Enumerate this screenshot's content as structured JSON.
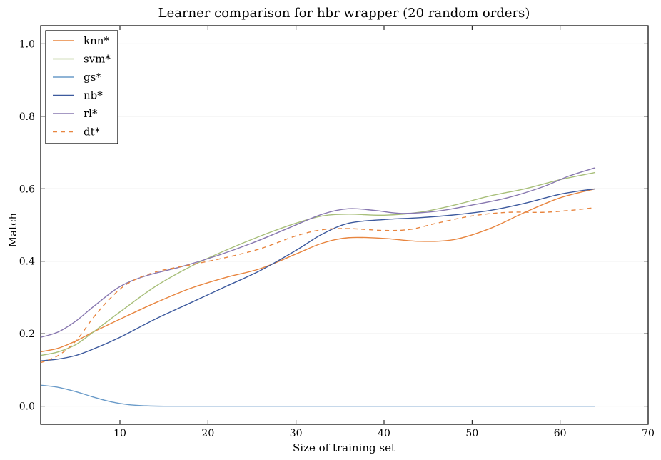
{
  "chart_data": {
    "type": "line",
    "title": "Learner comparison for hbr wrapper (20 random orders)",
    "xlabel": "Size of training set",
    "ylabel": "Match",
    "xlim": [
      1,
      70
    ],
    "ylim": [
      -0.05,
      1.05
    ],
    "xticks": [
      10,
      20,
      30,
      40,
      50,
      60,
      70
    ],
    "yticks": [
      0.0,
      0.2,
      0.4,
      0.6,
      0.8,
      1.0
    ],
    "grid": "horizontal",
    "legend_position": "top-left",
    "series": [
      {
        "name": "knn*",
        "color": "#E8853F",
        "dash": "solid",
        "x": [
          1,
          3,
          5,
          7,
          10,
          14,
          18,
          22,
          26,
          30,
          33,
          36,
          40,
          44,
          48,
          52,
          56,
          60,
          64
        ],
        "y": [
          0.15,
          0.16,
          0.18,
          0.205,
          0.24,
          0.285,
          0.325,
          0.355,
          0.38,
          0.42,
          0.45,
          0.465,
          0.463,
          0.455,
          0.46,
          0.49,
          0.535,
          0.575,
          0.6
        ]
      },
      {
        "name": "svm*",
        "color": "#A8BF7A",
        "dash": "solid",
        "x": [
          1,
          3,
          5,
          7,
          10,
          14,
          18,
          22,
          26,
          30,
          33,
          36,
          40,
          44,
          48,
          52,
          56,
          60,
          64
        ],
        "y": [
          0.14,
          0.15,
          0.17,
          0.205,
          0.26,
          0.33,
          0.385,
          0.43,
          0.47,
          0.505,
          0.525,
          0.53,
          0.527,
          0.535,
          0.555,
          0.58,
          0.6,
          0.625,
          0.645
        ]
      },
      {
        "name": "gs*",
        "color": "#6A9BC9",
        "dash": "solid",
        "x": [
          1,
          3,
          5,
          7,
          9,
          11,
          13,
          15,
          20,
          30,
          40,
          50,
          60,
          64
        ],
        "y": [
          0.058,
          0.052,
          0.04,
          0.025,
          0.012,
          0.004,
          0.001,
          0.0,
          0.0,
          0.0,
          0.0,
          0.0,
          0.0,
          0.0
        ]
      },
      {
        "name": "nb*",
        "color": "#3D5A9E",
        "dash": "solid",
        "x": [
          1,
          3,
          5,
          7,
          10,
          14,
          18,
          22,
          26,
          30,
          33,
          36,
          40,
          44,
          48,
          52,
          56,
          60,
          64
        ],
        "y": [
          0.125,
          0.13,
          0.14,
          0.158,
          0.19,
          0.24,
          0.285,
          0.33,
          0.375,
          0.43,
          0.475,
          0.505,
          0.515,
          0.52,
          0.528,
          0.54,
          0.56,
          0.585,
          0.6
        ]
      },
      {
        "name": "rl*",
        "color": "#8878B0",
        "dash": "solid",
        "x": [
          1,
          3,
          5,
          7,
          10,
          13,
          17,
          21,
          25,
          29,
          33,
          36,
          39,
          42,
          46,
          50,
          54,
          58,
          61,
          64
        ],
        "y": [
          0.19,
          0.205,
          0.235,
          0.275,
          0.33,
          0.36,
          0.385,
          0.415,
          0.45,
          0.49,
          0.53,
          0.545,
          0.54,
          0.532,
          0.538,
          0.555,
          0.575,
          0.605,
          0.635,
          0.658
        ]
      },
      {
        "name": "dt*",
        "color": "#E8853F",
        "dash": "dashed",
        "x": [
          1,
          3,
          5,
          7,
          9,
          11,
          14,
          18,
          22,
          26,
          30,
          33,
          36,
          40,
          43,
          46,
          50,
          54,
          58,
          61,
          64
        ],
        "y": [
          0.12,
          0.14,
          0.18,
          0.245,
          0.3,
          0.34,
          0.37,
          0.39,
          0.41,
          0.435,
          0.47,
          0.487,
          0.49,
          0.485,
          0.488,
          0.505,
          0.525,
          0.535,
          0.535,
          0.54,
          0.548
        ]
      }
    ]
  }
}
